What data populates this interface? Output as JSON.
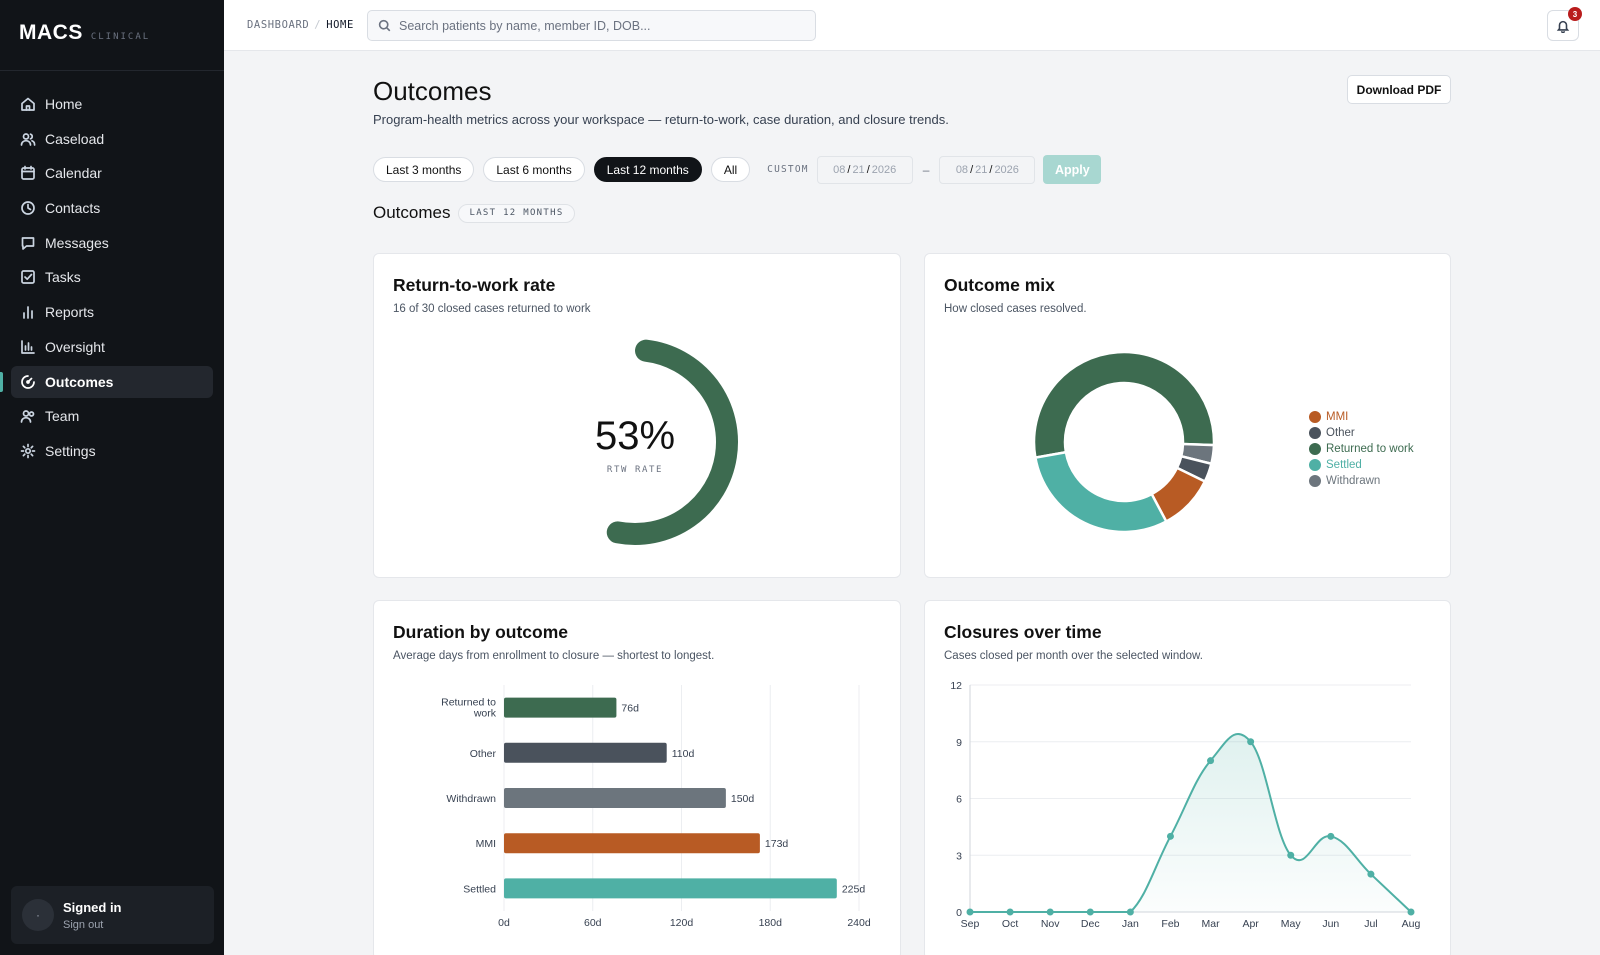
{
  "brand": {
    "name": "MACS",
    "sub": "CLINICAL"
  },
  "nav": [
    {
      "label": "Home",
      "icon": "home-icon"
    },
    {
      "label": "Caseload",
      "icon": "users-icon"
    },
    {
      "label": "Calendar",
      "icon": "calendar-icon"
    },
    {
      "label": "Contacts",
      "icon": "clock-icon"
    },
    {
      "label": "Messages",
      "icon": "message-icon"
    },
    {
      "label": "Tasks",
      "icon": "checkbox-icon"
    },
    {
      "label": "Reports",
      "icon": "bar-chart-icon"
    },
    {
      "label": "Oversight",
      "icon": "column-chart-icon"
    },
    {
      "label": "Outcomes",
      "icon": "gauge-icon",
      "active": true
    },
    {
      "label": "Team",
      "icon": "team-icon"
    },
    {
      "label": "Settings",
      "icon": "gear-icon"
    }
  ],
  "user": {
    "title": "Signed in",
    "signout": "Sign out",
    "avatar": "·"
  },
  "breadcrumb": {
    "parent": "DASHBOARD",
    "separator": "/",
    "current": "HOME"
  },
  "search": {
    "placeholder": "Search patients by name, member ID, DOB..."
  },
  "notifications": {
    "count": "3"
  },
  "page": {
    "title": "Outcomes",
    "subtitle": "Program-health metrics across your workspace — return-to-work, case duration, and closure trends.",
    "download_label": "Download PDF"
  },
  "filters": {
    "ranges": [
      "Last 3 months",
      "Last 6 months",
      "Last 12 months",
      "All"
    ],
    "active_range": "Last 12 months",
    "custom_label": "CUSTOM",
    "from": {
      "mm": "08",
      "dd": "21",
      "yyyy": "2026"
    },
    "to": {
      "mm": "08",
      "dd": "21",
      "yyyy": "2026"
    },
    "date_separator": "/",
    "range_dash": "–",
    "apply_label": "Apply"
  },
  "section": {
    "title": "Outcomes",
    "tag": "LAST 12 MONTHS"
  },
  "colors": {
    "returned": "#3d6b50",
    "other": "#4a525c",
    "withdrawn": "#6c757d",
    "mmi": "#b85b24",
    "settled": "#4fb0a5",
    "accent": "#4fb0a5"
  },
  "cards": {
    "rtw": {
      "title": "Return-to-work rate",
      "subtitle": "16 of 30 closed cases returned to work",
      "value": "53%",
      "label": "RTW RATE"
    },
    "mix": {
      "title": "Outcome mix",
      "subtitle": "How closed cases resolved."
    },
    "duration": {
      "title": "Duration by outcome",
      "subtitle": "Average days from enrollment to closure — shortest to longest."
    },
    "closures": {
      "title": "Closures over time",
      "subtitle": "Cases closed per month over the selected window."
    }
  },
  "chart_data": [
    {
      "type": "gauge",
      "title": "Return-to-work rate",
      "value": 0.53,
      "numerator": 16,
      "denominator": 30,
      "label": "53%"
    },
    {
      "type": "pie",
      "title": "Outcome mix",
      "donut": true,
      "legend_position": "right",
      "legend": [
        "MMI",
        "Other",
        "Returned to work",
        "Settled",
        "Withdrawn"
      ],
      "slices": [
        {
          "name": "Returned to work",
          "value": 16,
          "color": "#3d6b50"
        },
        {
          "name": "Withdrawn",
          "value": 1,
          "color": "#6c757d"
        },
        {
          "name": "Other",
          "value": 1,
          "color": "#4a525c"
        },
        {
          "name": "MMI",
          "value": 3,
          "color": "#b85b24"
        },
        {
          "name": "Settled",
          "value": 9,
          "color": "#4fb0a5"
        }
      ]
    },
    {
      "type": "bar",
      "orientation": "horizontal",
      "title": "Duration by outcome",
      "categories": [
        "Returned to work",
        "Other",
        "Withdrawn",
        "MMI",
        "Settled"
      ],
      "values": [
        76,
        110,
        150,
        173,
        225
      ],
      "value_labels": [
        "76d",
        "110d",
        "150d",
        "173d",
        "225d"
      ],
      "colors": [
        "#3d6b50",
        "#4a525c",
        "#6c757d",
        "#b85b24",
        "#4fb0a5"
      ],
      "xlim": [
        0,
        240
      ],
      "xticks": [
        "0d",
        "60d",
        "120d",
        "180d",
        "240d"
      ],
      "grid": true
    },
    {
      "type": "area",
      "title": "Closures over time",
      "categories": [
        "Sep",
        "Oct",
        "Nov",
        "Dec",
        "Jan",
        "Feb",
        "Mar",
        "Apr",
        "May",
        "Jun",
        "Jul",
        "Aug"
      ],
      "values": [
        0,
        0,
        0,
        0,
        0,
        4,
        8,
        9,
        3,
        4,
        2,
        0
      ],
      "ylim": [
        0,
        12
      ],
      "yticks": [
        "0",
        "3",
        "6",
        "9",
        "12"
      ],
      "grid": true,
      "color": "#4fb0a5"
    }
  ]
}
